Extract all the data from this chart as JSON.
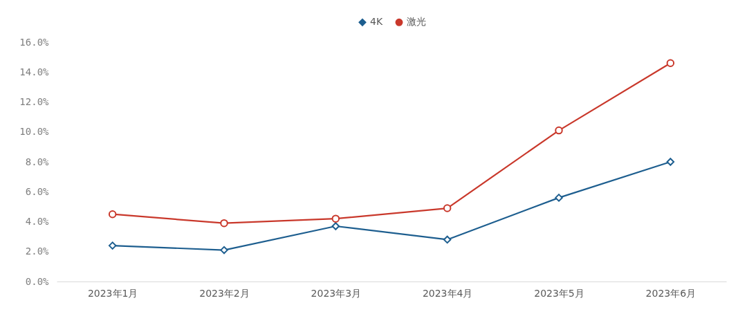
{
  "chart_data": {
    "type": "line",
    "categories": [
      "2023年1月",
      "2023年2月",
      "2023年3月",
      "2023年4月",
      "2023年5月",
      "2023年6月"
    ],
    "series": [
      {
        "name": "4K",
        "color": "#1d5e8f",
        "marker": "diamond",
        "values": [
          2.4,
          2.1,
          3.7,
          2.8,
          5.6,
          8.0
        ]
      },
      {
        "name": "激光",
        "color": "#c9382b",
        "marker": "circle",
        "values": [
          4.5,
          3.9,
          4.2,
          4.9,
          10.1,
          14.6
        ]
      }
    ],
    "ylim": [
      0,
      16
    ],
    "yticks": [
      {
        "value": 0,
        "label": "0.0%"
      },
      {
        "value": 2,
        "label": "2.0%"
      },
      {
        "value": 4,
        "label": "4.0%"
      },
      {
        "value": 6,
        "label": "6.0%"
      },
      {
        "value": 8,
        "label": "8.0%"
      },
      {
        "value": 10,
        "label": "10.0%"
      },
      {
        "value": 12,
        "label": "12.0%"
      },
      {
        "value": 14,
        "label": "14.0%"
      },
      {
        "value": 16,
        "label": "16.0%"
      }
    ],
    "grid": false,
    "legend": "top",
    "line_style": "solid"
  }
}
